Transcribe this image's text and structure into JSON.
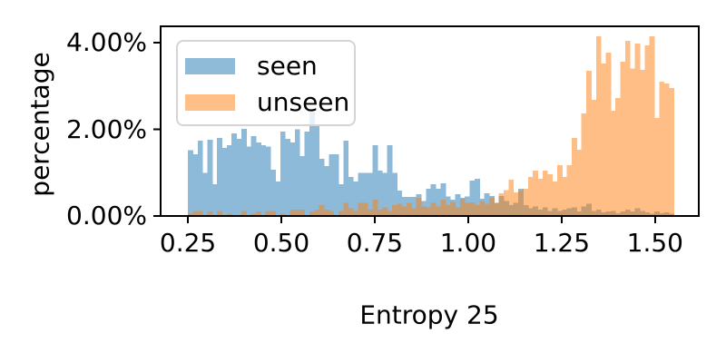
{
  "figure": {
    "background": "#ffffff"
  },
  "chart_data": {
    "type": "histogram",
    "title": "",
    "xlabel": "Entropy 25",
    "ylabel": "percentage",
    "x_ticks": [
      0.25,
      0.5,
      0.75,
      1.0,
      1.25,
      1.5
    ],
    "x_tick_labels": [
      "0.25",
      "0.50",
      "0.75",
      "1.00",
      "1.25",
      "1.50"
    ],
    "y_ticks": [
      0,
      2,
      4
    ],
    "y_tick_labels": [
      "0.00%",
      "2.00%",
      "4.00%"
    ],
    "xlim": [
      0.177,
      1.617
    ],
    "ylim": [
      0,
      4.38
    ],
    "grid": false,
    "bins": {
      "start": 0.25,
      "width": 0.013,
      "count": 100
    },
    "bar_alpha": 0.5,
    "axis_color": "#000000",
    "legend": {
      "position": "upper-left",
      "border_color": "#d5d5d5",
      "entries": [
        {
          "label": "seen",
          "color": "#1f77b4"
        },
        {
          "label": "unseen",
          "color": "#ff7f0e"
        }
      ]
    },
    "series": [
      {
        "name": "seen",
        "color": "#1f77b4",
        "values": [
          1.52,
          1.42,
          1.74,
          1.0,
          1.76,
          0.73,
          1.8,
          1.57,
          1.63,
          1.91,
          1.78,
          2.01,
          1.6,
          1.84,
          1.7,
          1.63,
          1.6,
          1.07,
          0.8,
          1.95,
          1.78,
          1.7,
          2.0,
          1.38,
          1.95,
          2.4,
          2.09,
          1.32,
          1.15,
          1.42,
          1.42,
          0.73,
          1.74,
          0.9,
          0.8,
          1.0,
          1.0,
          1.0,
          1.63,
          1.05,
          1.0,
          1.63,
          1.0,
          0.59,
          0.44,
          0.44,
          0.44,
          0.5,
          0.35,
          0.63,
          0.73,
          0.63,
          0.75,
          0.45,
          0.38,
          0.5,
          0.42,
          0.45,
          0.82,
          0.86,
          0.4,
          0.52,
          0.46,
          0.3,
          0.46,
          0.35,
          0.25,
          0.3,
          0.63,
          0.25,
          0.18,
          0.22,
          0.15,
          0.2,
          0.12,
          0.18,
          0.12,
          0.15,
          0.18,
          0.2,
          0.1,
          0.22,
          0.28,
          0.12,
          0.15,
          0.08,
          0.1,
          0.12,
          0.06,
          0.1,
          0.15,
          0.1,
          0.18,
          0.12,
          0.08,
          0.05,
          0.1,
          0.06,
          0.08,
          0.05
        ]
      },
      {
        "name": "unseen",
        "color": "#ff7f0e",
        "values": [
          0.05,
          0.12,
          0.12,
          0.0,
          0.1,
          0.0,
          0.12,
          0.0,
          0.05,
          0.0,
          0.0,
          0.12,
          0.0,
          0.05,
          0.1,
          0.0,
          0.12,
          0.12,
          0.0,
          0.05,
          0.0,
          0.15,
          0.15,
          0.15,
          0.0,
          0.1,
          0.15,
          0.25,
          0.15,
          0.12,
          0.0,
          0.12,
          0.3,
          0.18,
          0.12,
          0.3,
          0.3,
          0.15,
          0.38,
          0.15,
          0.2,
          0.12,
          0.25,
          0.28,
          0.22,
          0.3,
          0.18,
          0.42,
          0.22,
          0.2,
          0.3,
          0.22,
          0.38,
          0.25,
          0.32,
          0.2,
          0.4,
          0.3,
          0.31,
          0.25,
          0.35,
          0.28,
          0.42,
          0.3,
          0.52,
          0.6,
          0.84,
          0.55,
          0.59,
          0.63,
          0.9,
          1.05,
          0.86,
          1.05,
          0.96,
          0.8,
          1.17,
          0.9,
          1.17,
          1.8,
          1.53,
          2.37,
          3.35,
          2.68,
          4.15,
          3.52,
          3.77,
          2.43,
          2.72,
          3.56,
          4.04,
          3.41,
          3.98,
          3.37,
          3.94,
          4.15,
          2.26,
          3.1,
          3.06,
          2.95
        ]
      }
    ]
  }
}
